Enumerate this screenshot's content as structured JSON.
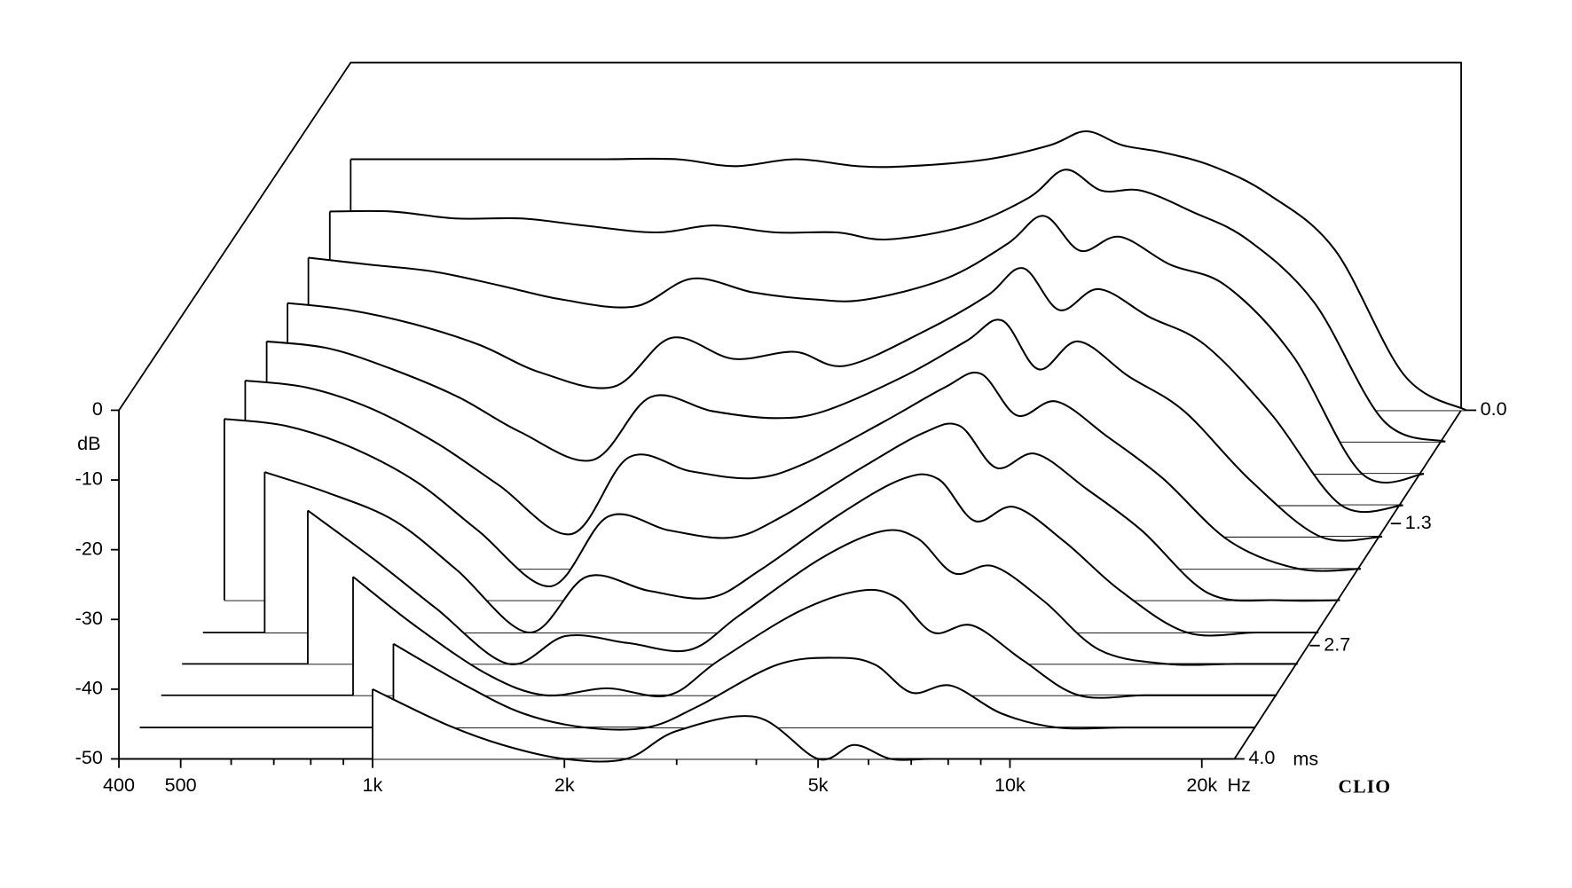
{
  "chart_data": {
    "type": "waterfall",
    "x": [
      400,
      500,
      630,
      800,
      1000,
      1300,
      1600,
      2000,
      2500,
      3000,
      4000,
      5000,
      5700,
      6500,
      7500,
      9000,
      11000,
      14000,
      18000,
      22500
    ],
    "xlim": [
      400,
      22500
    ],
    "xticks": [
      400,
      500,
      {
        "value": 1000,
        "label": "1k"
      },
      {
        "value": 2000,
        "label": "2k"
      },
      {
        "value": 5000,
        "label": "5k"
      },
      {
        "value": 10000,
        "label": "10k"
      },
      {
        "value": 20000,
        "label": "20k"
      }
    ],
    "minor_xticks": [
      600,
      700,
      800,
      900,
      3000,
      4000,
      6000,
      7000,
      8000,
      9000
    ],
    "x_unit": "Hz",
    "y_label": "dB",
    "ylim": [
      -50,
      0
    ],
    "yticks": [
      0,
      -10,
      -20,
      -30,
      -40,
      -50
    ],
    "zlim": [
      0,
      4
    ],
    "zticks": [
      {
        "value": 0,
        "label": "0.0"
      },
      {
        "value": 1.3,
        "label": "1.3"
      },
      {
        "value": 2.7,
        "label": "2.7"
      },
      {
        "value": 4,
        "label": "4.0"
      }
    ],
    "z_unit": "ms",
    "color": "#000000",
    "brand": "CLIO",
    "slices": [
      {
        "time": 0,
        "values": [
          -14,
          -14,
          -14,
          -14,
          -14,
          -14,
          -15,
          -14,
          -15,
          -15,
          -14,
          -12,
          -10,
          -12,
          -13,
          -15,
          -19,
          -27,
          -45,
          -50
        ]
      },
      {
        "time": 0.36,
        "values": [
          -17,
          -17,
          -18,
          -18,
          -19,
          -20,
          -19,
          -20,
          -20,
          -21,
          -19,
          -15,
          -11,
          -14,
          -14,
          -17,
          -21,
          -30,
          -47,
          -50
        ]
      },
      {
        "time": 0.73,
        "values": [
          -19,
          -20,
          -21,
          -23,
          -25,
          -26,
          -22,
          -24,
          -25,
          -25,
          -22,
          -17,
          -13,
          -18,
          -16,
          -20,
          -23,
          -33,
          -50,
          -50
        ]
      },
      {
        "time": 1.09,
        "values": [
          -21,
          -22,
          -24,
          -27,
          -31,
          -33,
          -26,
          -29,
          -28,
          -30,
          -25,
          -20,
          -16,
          -22,
          -19,
          -23,
          -27,
          -37,
          -50,
          -50
        ]
      },
      {
        "time": 1.45,
        "values": [
          -22,
          -23,
          -26,
          -30,
          -35,
          -39,
          -30,
          -32,
          -33,
          -32,
          -27,
          -22,
          -19,
          -26,
          -22,
          -27,
          -32,
          -42,
          -50,
          -50
        ]
      },
      {
        "time": 1.82,
        "values": [
          -23,
          -24,
          -27,
          -32,
          -38,
          -45,
          -34,
          -36,
          -37,
          -35,
          -29,
          -24,
          -22,
          -28,
          -26,
          -31,
          -37,
          -46,
          -50,
          -50
        ]
      },
      {
        "time": 2.18,
        "values": [
          -24,
          -25,
          -28,
          -33,
          -40,
          -48,
          -38,
          -40,
          -41,
          -38,
          -31,
          -26,
          -25,
          -31,
          -29,
          -34,
          -40,
          -49,
          -50,
          -50
        ]
      },
      {
        "time": 2.55,
        "values": [
          null,
          -27,
          -30,
          -34,
          -41,
          -50,
          -42,
          -44,
          -45,
          -41,
          -33,
          -28,
          -28,
          -34,
          -32,
          -37,
          -44,
          -50,
          -50,
          -50
        ]
      },
      {
        "time": 2.91,
        "values": [
          null,
          null,
          -28,
          -35,
          -42,
          -50,
          -46,
          -47,
          -48,
          -43,
          -35,
          -31,
          -32,
          -37,
          -36,
          -41,
          -48,
          -50,
          -50,
          -50
        ]
      },
      {
        "time": 3.27,
        "values": [
          null,
          null,
          null,
          -33,
          -40,
          -47,
          -50,
          -49,
          -50,
          -45,
          -38,
          -35,
          -36,
          -41,
          -40,
          -45,
          -50,
          -50,
          -50,
          -50
        ]
      },
      {
        "time": 3.64,
        "values": [
          null,
          null,
          null,
          null,
          -38,
          -44,
          -48,
          -50,
          -50,
          -47,
          -41,
          -40,
          -41,
          -45,
          -44,
          -48,
          -50,
          -50,
          -50,
          -50
        ]
      },
      {
        "time": 4,
        "values": [
          null,
          null,
          null,
          null,
          -40,
          -45,
          -48,
          -50,
          -50,
          -46,
          -44,
          -50,
          -48,
          -50,
          -50,
          -50,
          -50,
          -50,
          -50,
          -50
        ]
      }
    ]
  }
}
